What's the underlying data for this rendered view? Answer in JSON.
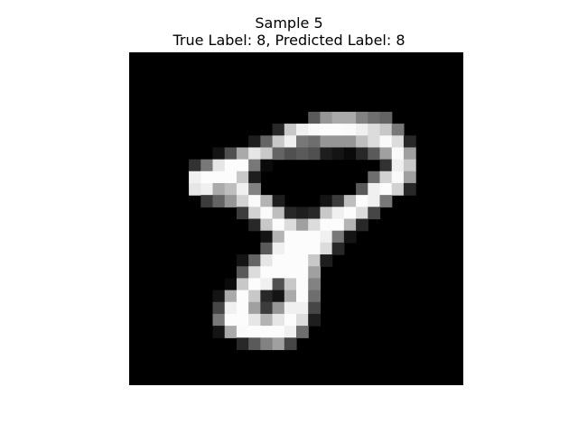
{
  "figure": {
    "title_line1": "Sample 5",
    "title_line2": "True Label: 8, Predicted Label: 8"
  },
  "image": {
    "kind": "grayscale-digit",
    "grid_size": [
      28,
      28
    ],
    "background_color": "#000000",
    "pixels": [
      [
        0,
        0,
        0,
        0,
        0,
        0,
        0,
        0,
        0,
        0,
        0,
        0,
        0,
        0,
        0,
        0,
        0,
        0,
        0,
        0,
        0,
        0,
        0,
        0,
        0,
        0,
        0,
        0
      ],
      [
        0,
        0,
        0,
        0,
        0,
        0,
        0,
        0,
        0,
        0,
        0,
        0,
        0,
        0,
        0,
        0,
        0,
        0,
        0,
        0,
        0,
        0,
        0,
        0,
        0,
        0,
        0,
        0
      ],
      [
        0,
        0,
        0,
        0,
        0,
        0,
        0,
        0,
        0,
        0,
        0,
        0,
        0,
        0,
        0,
        0,
        0,
        0,
        0,
        0,
        0,
        0,
        0,
        0,
        0,
        0,
        0,
        0
      ],
      [
        0,
        0,
        0,
        0,
        0,
        0,
        0,
        0,
        0,
        0,
        0,
        0,
        0,
        0,
        0,
        0,
        0,
        0,
        0,
        0,
        0,
        0,
        0,
        0,
        0,
        0,
        0,
        0
      ],
      [
        0,
        0,
        0,
        0,
        0,
        0,
        0,
        0,
        0,
        0,
        0,
        0,
        0,
        0,
        0,
        0,
        0,
        0,
        0,
        0,
        0,
        0,
        0,
        0,
        0,
        0,
        0,
        0
      ],
      [
        0,
        0,
        0,
        0,
        0,
        0,
        0,
        0,
        0,
        0,
        0,
        0,
        0,
        0,
        0,
        90,
        150,
        170,
        170,
        130,
        110,
        100,
        0,
        0,
        0,
        0,
        0,
        0
      ],
      [
        0,
        0,
        0,
        0,
        0,
        0,
        0,
        0,
        0,
        0,
        0,
        0,
        40,
        200,
        240,
        250,
        252,
        252,
        250,
        240,
        220,
        200,
        120,
        0,
        0,
        0,
        0,
        0
      ],
      [
        0,
        0,
        0,
        0,
        0,
        0,
        0,
        0,
        0,
        0,
        30,
        100,
        200,
        240,
        120,
        110,
        150,
        150,
        150,
        190,
        220,
        250,
        220,
        40,
        0,
        0,
        0,
        0
      ],
      [
        0,
        0,
        0,
        0,
        0,
        0,
        0,
        20,
        80,
        170,
        230,
        200,
        100,
        80,
        90,
        80,
        30,
        20,
        10,
        40,
        90,
        160,
        250,
        160,
        0,
        0,
        0,
        0
      ],
      [
        0,
        0,
        0,
        0,
        0,
        50,
        120,
        230,
        252,
        252,
        120,
        10,
        0,
        0,
        0,
        0,
        0,
        0,
        0,
        0,
        0,
        50,
        240,
        200,
        0,
        0,
        0,
        0
      ],
      [
        0,
        0,
        0,
        0,
        0,
        240,
        252,
        252,
        252,
        200,
        30,
        0,
        0,
        0,
        0,
        0,
        0,
        0,
        0,
        0,
        110,
        210,
        250,
        160,
        0,
        0,
        0,
        0
      ],
      [
        0,
        0,
        0,
        0,
        0,
        230,
        240,
        170,
        190,
        240,
        130,
        0,
        0,
        0,
        0,
        0,
        0,
        0,
        0,
        90,
        240,
        252,
        210,
        40,
        0,
        0,
        0,
        0
      ],
      [
        0,
        0,
        0,
        0,
        0,
        0,
        60,
        100,
        150,
        210,
        250,
        180,
        30,
        0,
        0,
        0,
        20,
        60,
        190,
        252,
        240,
        120,
        0,
        0,
        0,
        0,
        0,
        0
      ],
      [
        0,
        0,
        0,
        0,
        0,
        0,
        0,
        0,
        0,
        60,
        210,
        250,
        190,
        40,
        30,
        40,
        200,
        240,
        252,
        220,
        70,
        0,
        0,
        0,
        0,
        0,
        0,
        0
      ],
      [
        0,
        0,
        0,
        0,
        0,
        0,
        0,
        0,
        0,
        0,
        40,
        200,
        252,
        220,
        160,
        220,
        252,
        252,
        180,
        40,
        0,
        0,
        0,
        0,
        0,
        0,
        0,
        0
      ],
      [
        0,
        0,
        0,
        0,
        0,
        0,
        0,
        0,
        0,
        0,
        0,
        20,
        180,
        252,
        252,
        252,
        240,
        120,
        20,
        0,
        0,
        0,
        0,
        0,
        0,
        0,
        0,
        0
      ],
      [
        0,
        0,
        0,
        0,
        0,
        0,
        0,
        0,
        0,
        0,
        0,
        90,
        240,
        252,
        252,
        252,
        220,
        40,
        0,
        0,
        0,
        0,
        0,
        0,
        0,
        0,
        0,
        0
      ],
      [
        0,
        0,
        0,
        0,
        0,
        0,
        0,
        0,
        0,
        20,
        100,
        230,
        252,
        252,
        252,
        200,
        30,
        0,
        0,
        0,
        0,
        0,
        0,
        0,
        0,
        0,
        0,
        0
      ],
      [
        0,
        0,
        0,
        0,
        0,
        0,
        0,
        0,
        0,
        90,
        220,
        252,
        252,
        252,
        252,
        160,
        0,
        0,
        0,
        0,
        0,
        0,
        0,
        0,
        0,
        0,
        0,
        0
      ],
      [
        0,
        0,
        0,
        0,
        0,
        0,
        0,
        0,
        10,
        200,
        252,
        240,
        80,
        200,
        252,
        130,
        0,
        0,
        0,
        0,
        0,
        0,
        0,
        0,
        0,
        0,
        0,
        0
      ],
      [
        0,
        0,
        0,
        0,
        0,
        0,
        0,
        20,
        170,
        252,
        200,
        40,
        20,
        170,
        252,
        110,
        0,
        0,
        0,
        0,
        0,
        0,
        0,
        0,
        0,
        0,
        0,
        0
      ],
      [
        0,
        0,
        0,
        0,
        0,
        0,
        0,
        70,
        240,
        252,
        160,
        60,
        150,
        240,
        240,
        70,
        0,
        0,
        0,
        0,
        0,
        0,
        0,
        0,
        0,
        0,
        0,
        0
      ],
      [
        0,
        0,
        0,
        0,
        0,
        0,
        0,
        120,
        252,
        252,
        230,
        180,
        230,
        252,
        220,
        30,
        0,
        0,
        0,
        0,
        0,
        0,
        0,
        0,
        0,
        0,
        0,
        0
      ],
      [
        0,
        0,
        0,
        0,
        0,
        0,
        0,
        20,
        170,
        250,
        252,
        252,
        252,
        240,
        110,
        0,
        0,
        0,
        0,
        0,
        0,
        0,
        0,
        0,
        0,
        0,
        0,
        0
      ],
      [
        0,
        0,
        0,
        0,
        0,
        0,
        0,
        0,
        0,
        40,
        90,
        130,
        160,
        70,
        0,
        0,
        0,
        0,
        0,
        0,
        0,
        0,
        0,
        0,
        0,
        0,
        0,
        0
      ],
      [
        0,
        0,
        0,
        0,
        0,
        0,
        0,
        0,
        0,
        0,
        0,
        0,
        0,
        0,
        0,
        0,
        0,
        0,
        0,
        0,
        0,
        0,
        0,
        0,
        0,
        0,
        0,
        0
      ],
      [
        0,
        0,
        0,
        0,
        0,
        0,
        0,
        0,
        0,
        0,
        0,
        0,
        0,
        0,
        0,
        0,
        0,
        0,
        0,
        0,
        0,
        0,
        0,
        0,
        0,
        0,
        0,
        0
      ],
      [
        0,
        0,
        0,
        0,
        0,
        0,
        0,
        0,
        0,
        0,
        0,
        0,
        0,
        0,
        0,
        0,
        0,
        0,
        0,
        0,
        0,
        0,
        0,
        0,
        0,
        0,
        0,
        0
      ]
    ]
  }
}
